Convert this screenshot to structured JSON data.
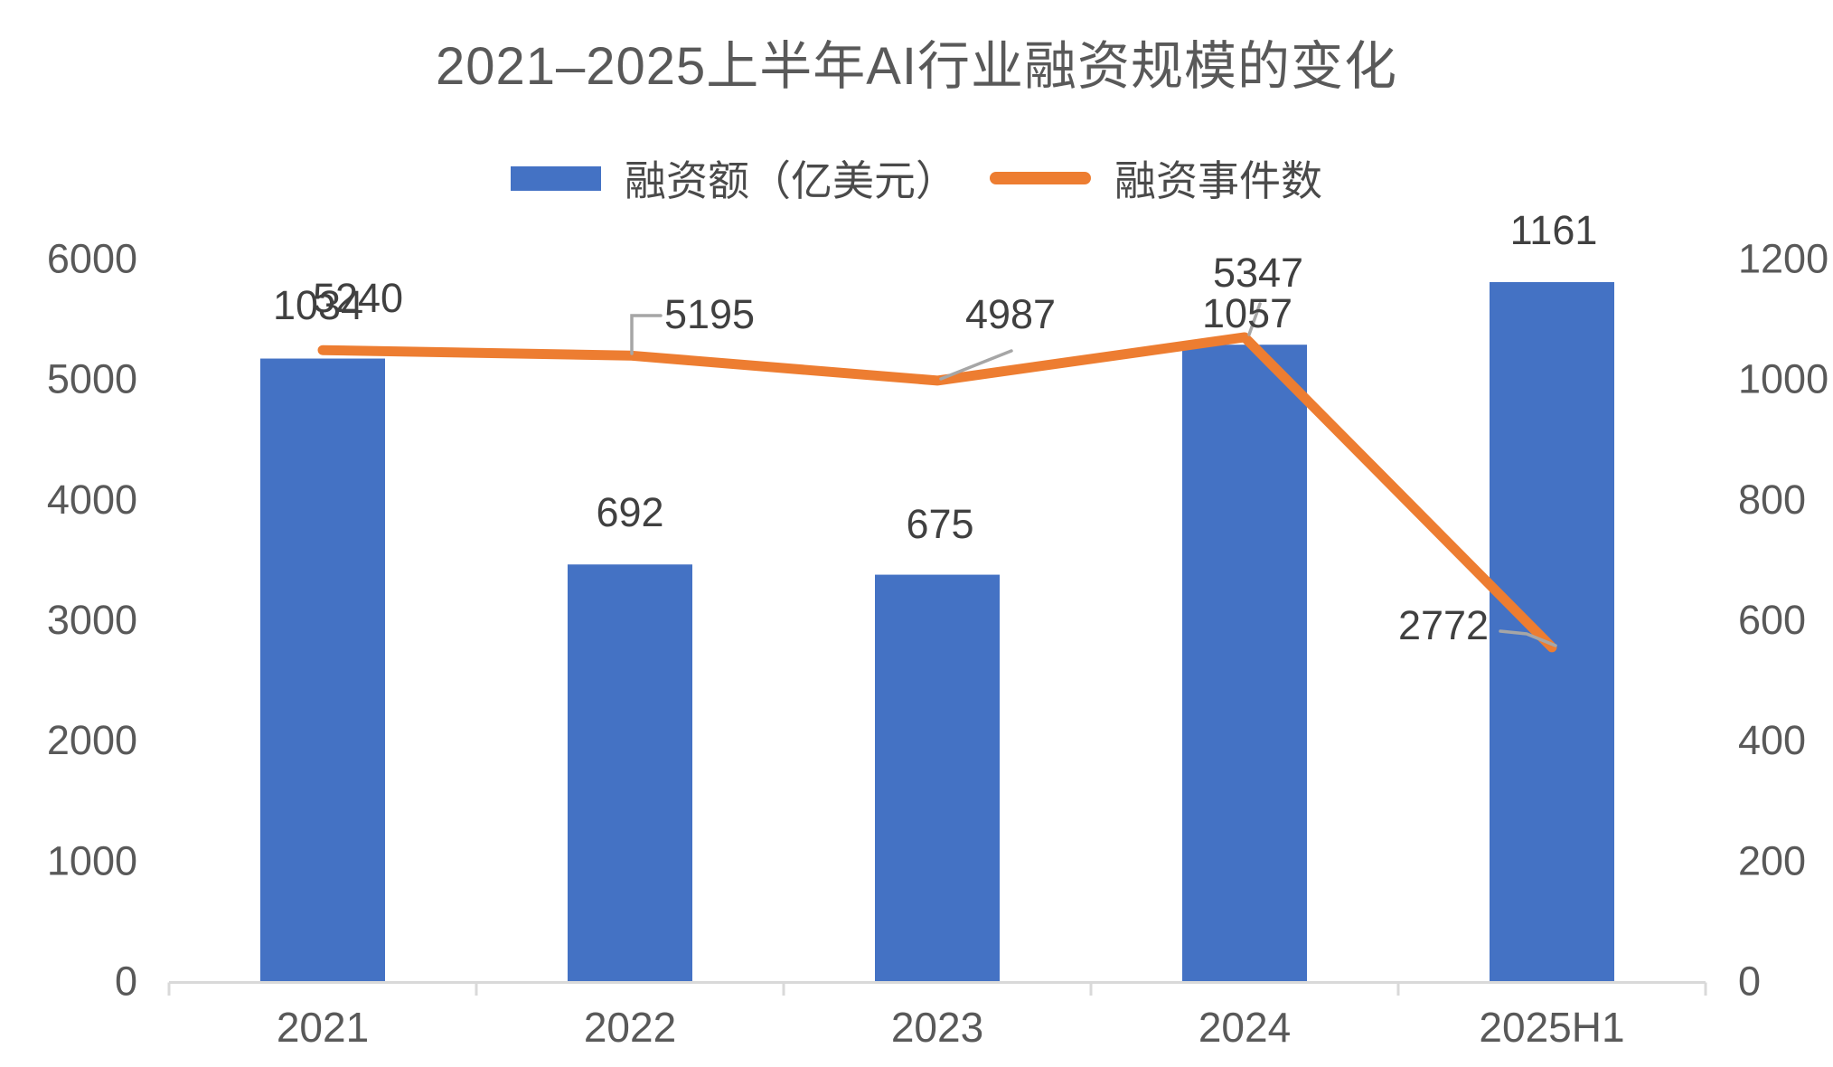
{
  "title": "2021–2025上半年AI行业融资规模的变化",
  "legend": [
    {
      "label": "融资额（亿美元）",
      "color": "#4472C4",
      "marker": "bar"
    },
    {
      "label": "融资事件数",
      "color": "#ED7D31",
      "marker": "line"
    }
  ],
  "chart_data": {
    "type": "bar+line",
    "title": "2021–2025上半年AI行业融资规模的变化",
    "categories": [
      "2021",
      "2022",
      "2023",
      "2024",
      "2025H1"
    ],
    "series": [
      {
        "name": "融资额（亿美元）",
        "type": "bar",
        "axis": "right",
        "color": "#4472C4",
        "values": [
          1034,
          692,
          675,
          1057,
          1161
        ]
      },
      {
        "name": "融资事件数",
        "type": "line",
        "axis": "left",
        "color": "#ED7D31",
        "values": [
          5240,
          5195,
          4987,
          5347,
          2772
        ]
      }
    ],
    "axes": {
      "left": {
        "min": 0,
        "max": 6000,
        "step": 1000,
        "ticks": [
          0,
          1000,
          2000,
          3000,
          4000,
          5000,
          6000
        ]
      },
      "right": {
        "min": 0,
        "max": 1200,
        "step": 200,
        "ticks": [
          0,
          200,
          400,
          600,
          800,
          1000,
          1200
        ]
      }
    },
    "grid": false,
    "legend_position": "top",
    "data_labels": true,
    "colors": {
      "bar": "#4472C4",
      "line": "#ED7D31",
      "title_text": "#595959",
      "axis_text": "#595959",
      "data_label_text": "#404040",
      "axis_line": "#D9D9D9",
      "leader_line": "#A6A6A6",
      "background": "#FFFFFF"
    }
  }
}
